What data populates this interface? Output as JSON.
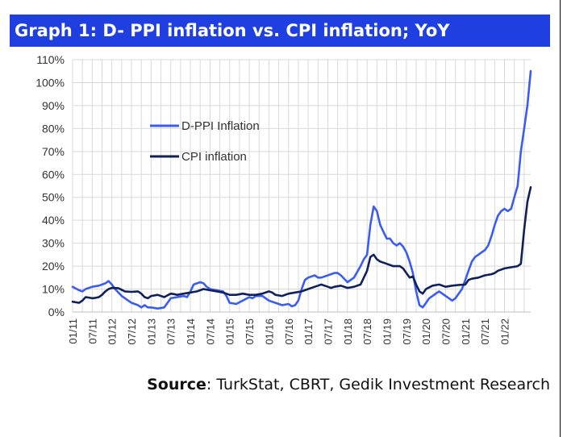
{
  "title": "Graph 1: D- PPI inflation vs. CPI inflation; YoY",
  "source": {
    "label": "Source",
    "text": ": TurkStat, CBRT, Gedik Investment Research"
  },
  "chart_data": {
    "type": "line",
    "title": "Graph 1: D- PPI inflation vs. CPI inflation; YoY",
    "xlabel": "",
    "ylabel": "",
    "ylim": [
      0,
      110
    ],
    "yticks": [
      "0%",
      "10%",
      "20%",
      "30%",
      "40%",
      "50%",
      "60%",
      "70%",
      "80%",
      "90%",
      "100%",
      "110%"
    ],
    "xticks": [
      "01/11",
      "07/11",
      "01/12",
      "07/12",
      "01/13",
      "07/13",
      "01/14",
      "07/14",
      "01/15",
      "07/15",
      "01/16",
      "07/16",
      "01/17",
      "07/17",
      "01/18",
      "07/18",
      "01/19",
      "07/19",
      "01/20",
      "07/20",
      "01/21",
      "07/21",
      "01/22"
    ],
    "grid": true,
    "legend_position": "upper-left",
    "series": [
      {
        "name": "D-PPI Inflation",
        "color": "#3b5cf0",
        "points": [
          [
            0,
            11
          ],
          [
            2,
            9.5
          ],
          [
            3,
            9
          ],
          [
            4,
            10
          ],
          [
            6,
            11
          ],
          [
            8,
            11.5
          ],
          [
            10,
            12.5
          ],
          [
            11,
            13.5
          ],
          [
            12,
            12
          ],
          [
            13,
            10
          ],
          [
            14,
            8.5
          ],
          [
            15,
            7
          ],
          [
            16,
            6
          ],
          [
            17,
            5
          ],
          [
            18,
            4
          ],
          [
            19,
            3.5
          ],
          [
            20,
            3
          ],
          [
            21,
            2
          ],
          [
            22,
            3
          ],
          [
            23,
            2
          ],
          [
            24,
            2
          ],
          [
            26,
            1.5
          ],
          [
            28,
            2
          ],
          [
            29,
            4
          ],
          [
            30,
            6
          ],
          [
            32,
            6.5
          ],
          [
            34,
            7
          ],
          [
            35,
            6.5
          ],
          [
            36,
            9
          ],
          [
            37,
            12
          ],
          [
            39,
            13
          ],
          [
            40,
            12.5
          ],
          [
            41,
            11
          ],
          [
            42,
            10
          ],
          [
            44,
            9.5
          ],
          [
            46,
            9
          ],
          [
            47,
            7
          ],
          [
            48,
            4
          ],
          [
            50,
            3.5
          ],
          [
            52,
            5
          ],
          [
            54,
            6.5
          ],
          [
            55,
            6
          ],
          [
            56,
            7
          ],
          [
            58,
            7
          ],
          [
            60,
            5
          ],
          [
            62,
            4
          ],
          [
            63,
            3.5
          ],
          [
            64,
            3
          ],
          [
            66,
            3.5
          ],
          [
            67,
            2.5
          ],
          [
            68,
            3
          ],
          [
            69,
            5
          ],
          [
            70,
            10
          ],
          [
            71,
            14
          ],
          [
            72,
            15
          ],
          [
            74,
            16
          ],
          [
            75,
            15
          ],
          [
            76,
            15
          ],
          [
            78,
            16
          ],
          [
            80,
            17
          ],
          [
            81,
            17
          ],
          [
            82,
            16
          ],
          [
            84,
            13
          ],
          [
            86,
            15
          ],
          [
            88,
            20
          ],
          [
            89,
            23
          ],
          [
            90,
            25
          ],
          [
            91,
            38
          ],
          [
            92,
            46
          ],
          [
            93,
            44
          ],
          [
            94,
            38
          ],
          [
            95,
            35
          ],
          [
            96,
            32
          ],
          [
            97,
            32
          ],
          [
            98,
            30
          ],
          [
            99,
            29
          ],
          [
            100,
            30
          ],
          [
            101,
            28.5
          ],
          [
            102,
            26
          ],
          [
            103,
            22
          ],
          [
            104,
            17
          ],
          [
            105,
            9
          ],
          [
            106,
            3
          ],
          [
            107,
            2
          ],
          [
            108,
            4
          ],
          [
            109,
            6
          ],
          [
            110,
            7
          ],
          [
            111,
            8
          ],
          [
            112,
            9
          ],
          [
            113,
            8
          ],
          [
            114,
            7
          ],
          [
            115,
            6
          ],
          [
            116,
            5
          ],
          [
            117,
            6
          ],
          [
            118,
            8
          ],
          [
            119,
            10
          ],
          [
            120,
            14
          ],
          [
            121,
            18
          ],
          [
            122,
            22
          ],
          [
            123,
            24
          ],
          [
            124,
            25
          ],
          [
            125,
            26
          ],
          [
            126,
            27
          ],
          [
            127,
            29
          ],
          [
            128,
            33
          ],
          [
            129,
            38
          ],
          [
            130,
            42
          ],
          [
            131,
            44
          ],
          [
            132,
            45
          ],
          [
            133,
            44
          ],
          [
            134,
            45
          ],
          [
            135,
            50
          ],
          [
            136,
            55
          ],
          [
            137,
            70
          ],
          [
            138,
            80
          ],
          [
            139,
            90
          ],
          [
            140,
            105
          ]
        ]
      },
      {
        "name": "CPI inflation",
        "color": "#10205a",
        "points": [
          [
            0,
            4.5
          ],
          [
            2,
            4
          ],
          [
            3,
            5
          ],
          [
            4,
            6.5
          ],
          [
            5,
            6.3
          ],
          [
            6,
            6
          ],
          [
            7,
            6.2
          ],
          [
            8,
            6.5
          ],
          [
            9,
            7.5
          ],
          [
            10,
            9
          ],
          [
            11,
            10
          ],
          [
            12,
            10.5
          ],
          [
            14,
            10.4
          ],
          [
            16,
            9
          ],
          [
            18,
            8.8
          ],
          [
            20,
            9
          ],
          [
            21,
            8
          ],
          [
            22,
            6.5
          ],
          [
            23,
            6
          ],
          [
            24,
            7
          ],
          [
            26,
            7.5
          ],
          [
            28,
            6.5
          ],
          [
            30,
            8
          ],
          [
            31,
            7.8
          ],
          [
            32,
            7.5
          ],
          [
            34,
            8
          ],
          [
            36,
            8.5
          ],
          [
            38,
            9
          ],
          [
            40,
            10
          ],
          [
            42,
            9.5
          ],
          [
            44,
            9
          ],
          [
            46,
            8.5
          ],
          [
            48,
            7.5
          ],
          [
            50,
            7.5
          ],
          [
            52,
            8
          ],
          [
            54,
            7.5
          ],
          [
            56,
            7.5
          ],
          [
            58,
            8
          ],
          [
            60,
            9
          ],
          [
            61,
            8.5
          ],
          [
            62,
            7.5
          ],
          [
            64,
            7
          ],
          [
            66,
            8
          ],
          [
            68,
            8.5
          ],
          [
            70,
            9
          ],
          [
            72,
            10
          ],
          [
            74,
            11
          ],
          [
            75,
            11.5
          ],
          [
            76,
            12
          ],
          [
            78,
            11
          ],
          [
            79,
            10.5
          ],
          [
            80,
            11
          ],
          [
            82,
            11.5
          ],
          [
            84,
            10.5
          ],
          [
            86,
            11
          ],
          [
            88,
            12
          ],
          [
            89,
            15
          ],
          [
            90,
            18
          ],
          [
            91,
            24
          ],
          [
            92,
            25
          ],
          [
            93,
            23
          ],
          [
            94,
            22
          ],
          [
            96,
            21
          ],
          [
            98,
            20
          ],
          [
            100,
            20
          ],
          [
            101,
            19
          ],
          [
            102,
            17
          ],
          [
            103,
            15
          ],
          [
            104,
            15.5
          ],
          [
            105,
            12
          ],
          [
            106,
            9
          ],
          [
            107,
            8
          ],
          [
            108,
            10
          ],
          [
            110,
            11.5
          ],
          [
            112,
            12
          ],
          [
            114,
            11
          ],
          [
            116,
            11.5
          ],
          [
            118,
            11.8
          ],
          [
            120,
            12
          ],
          [
            121,
            14
          ],
          [
            122,
            14.5
          ],
          [
            124,
            15
          ],
          [
            126,
            16
          ],
          [
            128,
            16.5
          ],
          [
            129,
            17
          ],
          [
            130,
            18
          ],
          [
            132,
            19
          ],
          [
            134,
            19.5
          ],
          [
            136,
            20
          ],
          [
            137,
            21
          ],
          [
            138,
            36
          ],
          [
            139,
            48
          ],
          [
            140,
            54.4
          ]
        ]
      }
    ]
  }
}
